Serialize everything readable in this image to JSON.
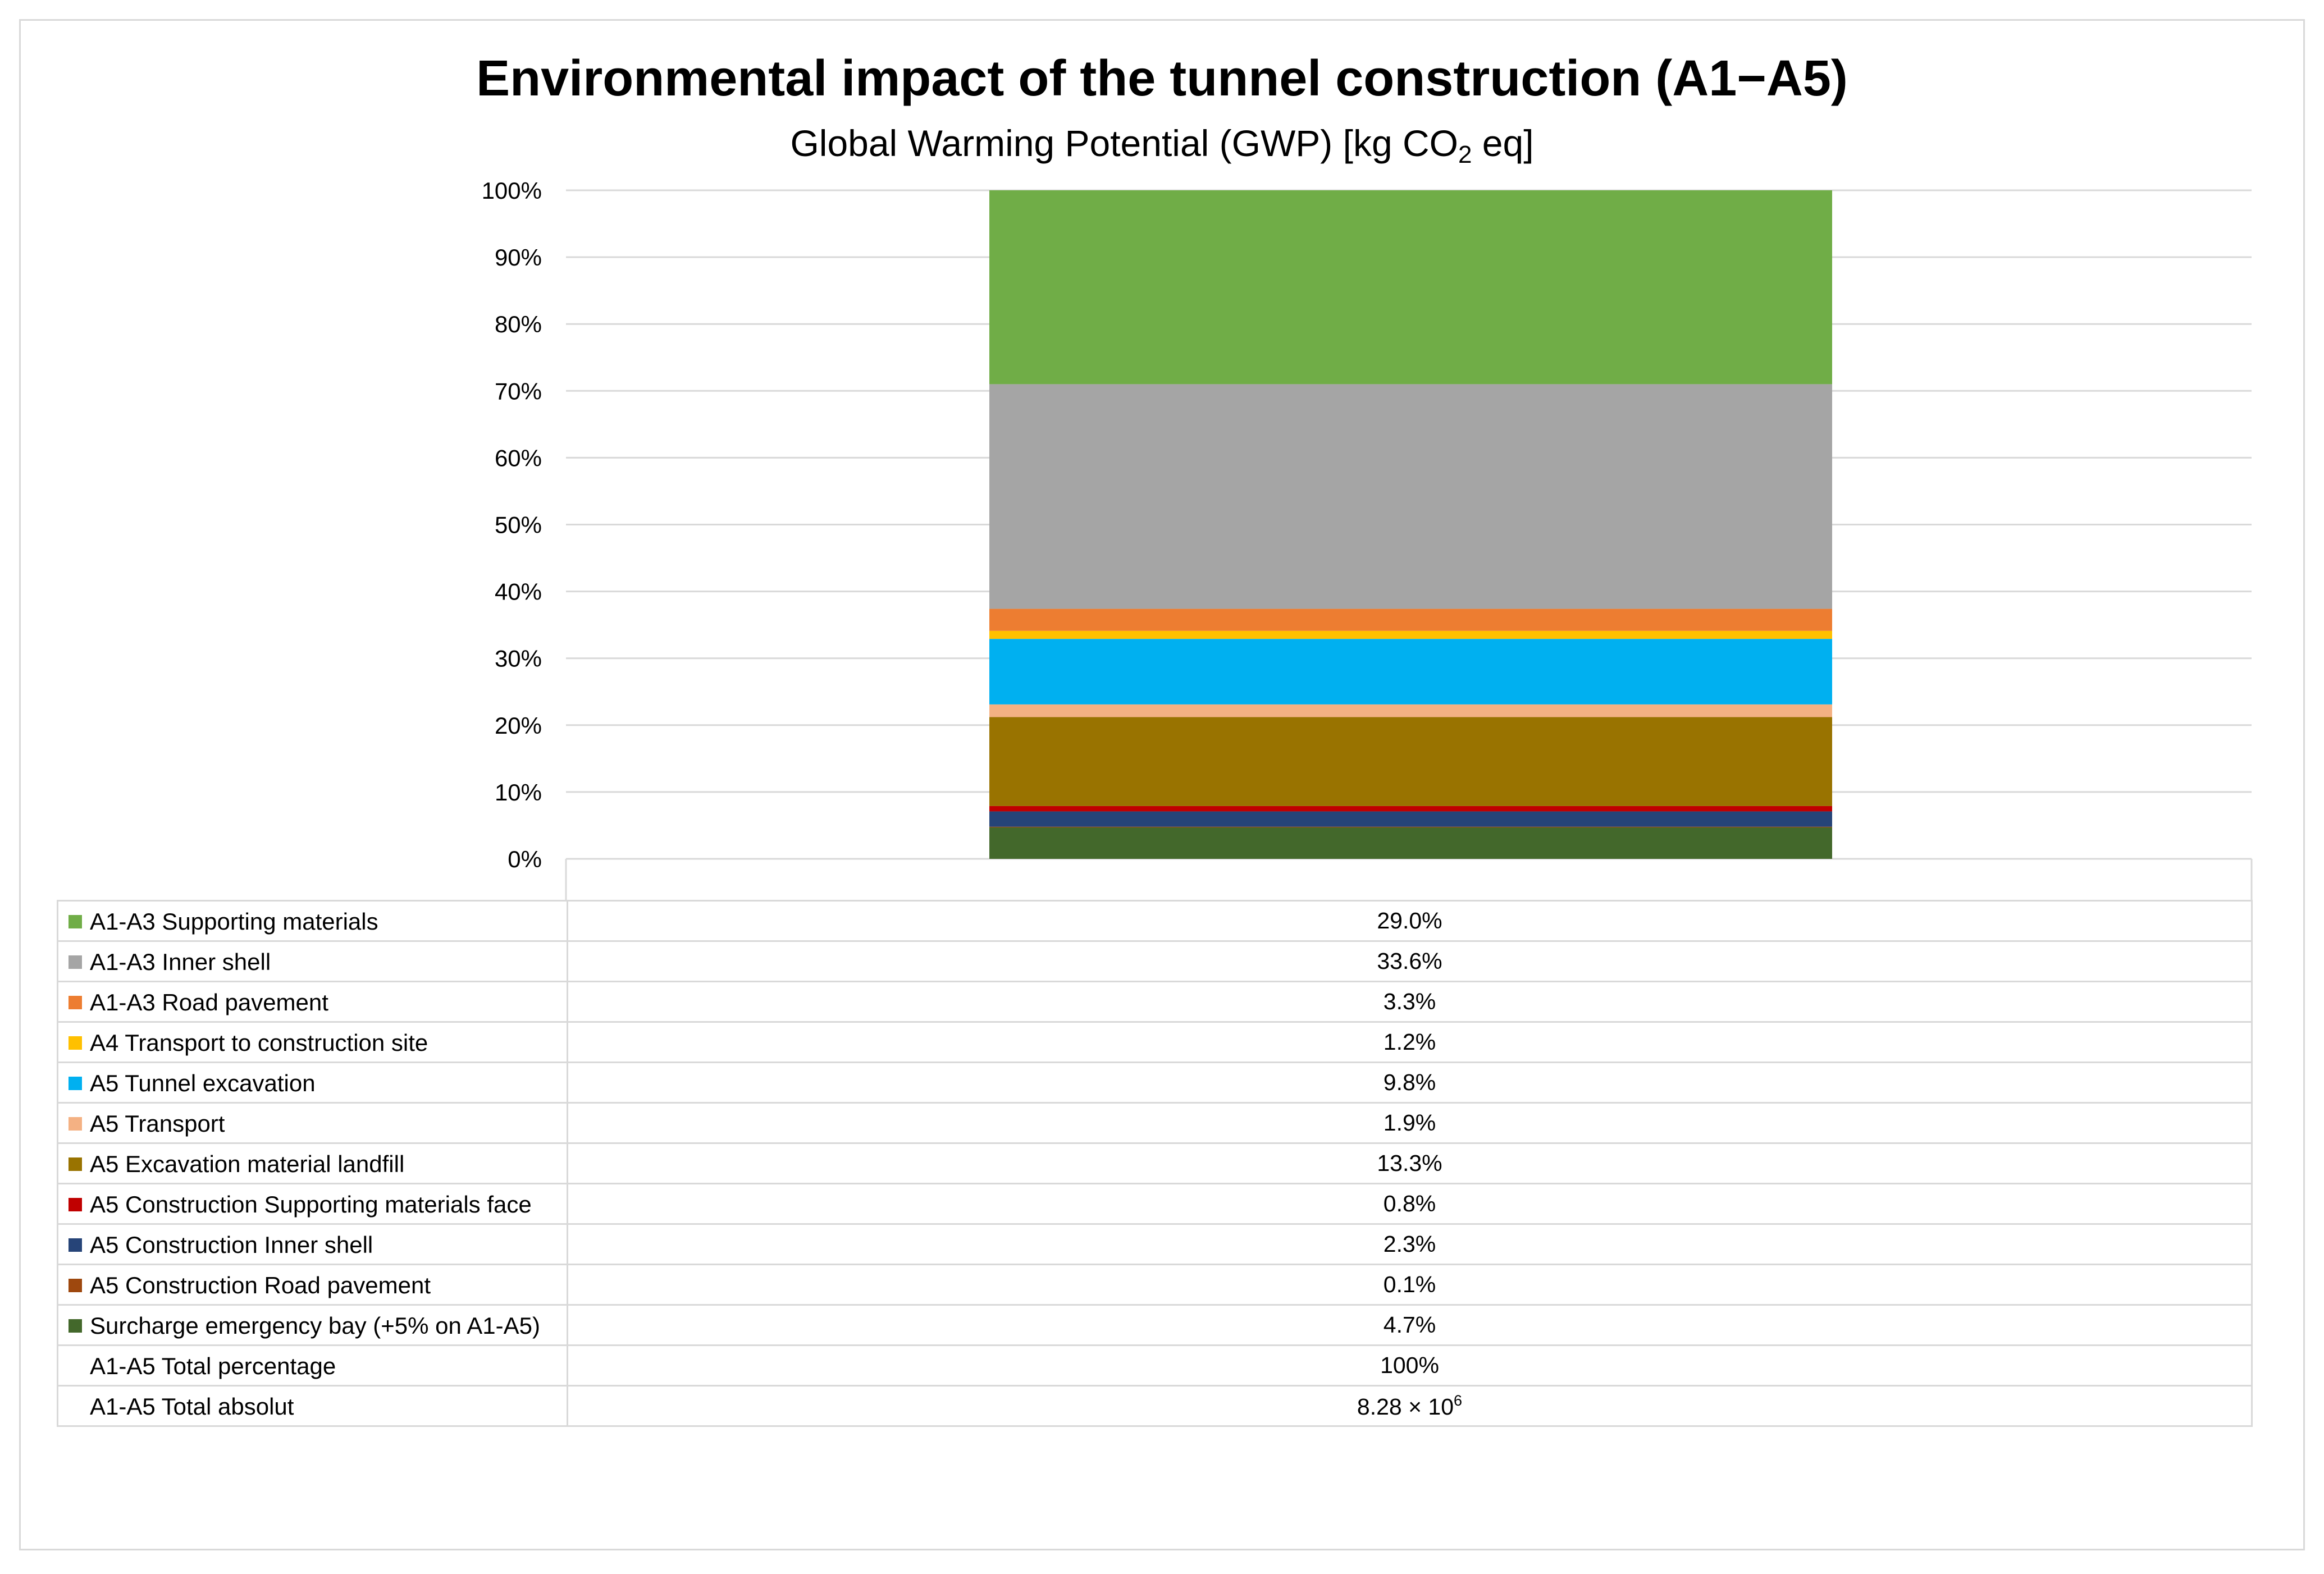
{
  "chart_data": {
    "type": "bar",
    "stacked": true,
    "normalized": true,
    "title": "Environmental impact of the tunnel construction (A1−A5)",
    "subtitle": {
      "prefix": "Global Warming Potential (GWP) [kg CO",
      "subscript": "2",
      "suffix": " eq]"
    },
    "categories": [
      ""
    ],
    "ylim": [
      0,
      100
    ],
    "yticks": [
      "0%",
      "10%",
      "20%",
      "30%",
      "40%",
      "50%",
      "60%",
      "70%",
      "80%",
      "90%",
      "100%"
    ],
    "grid": true,
    "series": [
      {
        "name": "A1-A3 Supporting materials",
        "value": 29.0,
        "label": "29.0%",
        "color": "#70ad47"
      },
      {
        "name": "A1-A3 Inner shell",
        "value": 33.6,
        "label": "33.6%",
        "color": "#a5a5a5"
      },
      {
        "name": "A1-A3 Road pavement",
        "value": 3.3,
        "label": "3.3%",
        "color": "#ed7d31"
      },
      {
        "name": "A4 Transport to construction site",
        "value": 1.2,
        "label": "1.2%",
        "color": "#ffc000"
      },
      {
        "name": "A5 Tunnel excavation",
        "value": 9.8,
        "label": "9.8%",
        "color": "#00b0f0"
      },
      {
        "name": "A5 Transport",
        "value": 1.9,
        "label": "1.9%",
        "color": "#f4b183"
      },
      {
        "name": "A5 Excavation material landfill",
        "value": 13.3,
        "label": "13.3%",
        "color": "#997300"
      },
      {
        "name": "A5 Construction Supporting materials face",
        "value": 0.8,
        "label": "0.8%",
        "color": "#c00000"
      },
      {
        "name": "A5 Construction Inner shell",
        "value": 2.3,
        "label": "2.3%",
        "color": "#264478"
      },
      {
        "name": "A5 Construction Road pavement",
        "value": 0.1,
        "label": "0.1%",
        "color": "#9e480e"
      },
      {
        "name": "Surcharge emergency bay (+5% on A1-A5)",
        "value": 4.7,
        "label": "4.7%",
        "color": "#43682b"
      }
    ],
    "totals": {
      "percentage_label": "A1-A5 Total percentage",
      "percentage_value": "100%",
      "absolute_label": "A1-A5 Total absolut",
      "absolute_mantissa": "8.28 × 10",
      "absolute_exponent": "6"
    }
  }
}
